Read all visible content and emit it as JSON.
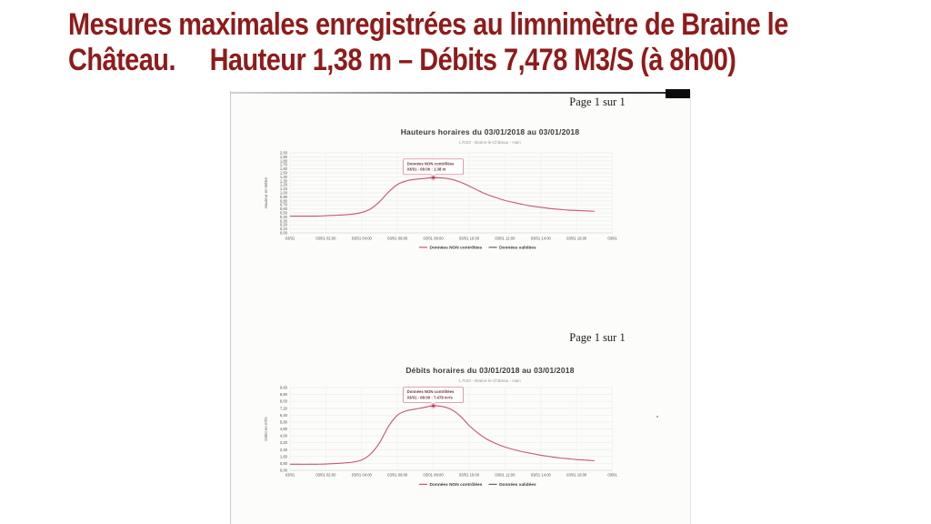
{
  "slide": {
    "title_line1": "Mesures maximales enregistrées au limnimètre de Braine le",
    "title_line2": "Château.     Hauteur 1,38 m – Débits 7,478 M3/S (à 8h00)",
    "title_color": "#8e1b1b"
  },
  "scan": {
    "page_labels": [
      "Page 1 sur 1",
      "Page 1 sur 1"
    ]
  },
  "chart_data": [
    {
      "type": "line",
      "title": "Hauteurs horaires du 03/01/2018 au 03/01/2018",
      "subtitle": "L7020 - Braine-le-Château - Hain",
      "xlabel": "",
      "ylabel": "Hauteur en Mètre",
      "ylim": [
        0,
        2.0
      ],
      "grid": true,
      "legend_position": "bottom",
      "yticks": [
        "2,00",
        "1,90",
        "1,80",
        "1,70",
        "1,60",
        "1,50",
        "1,40",
        "1,30",
        "1,20",
        "1,10",
        "1,00",
        "0,90",
        "0,80",
        "0,70",
        "0,60",
        "0,50",
        "0,40",
        "0,30",
        "0,20",
        "0,10",
        "0,00"
      ],
      "xtick_hours": [
        0,
        2,
        4,
        6,
        8,
        10,
        12,
        14,
        16,
        18
      ],
      "xtick_labels": [
        "03/01",
        "03/01 02:00",
        "03/01 04:00",
        "03/01 06:00",
        "03/01 08:00",
        "03/01 10:00",
        "03/01 12:00",
        "03/01 14:00",
        "03/01 16:00",
        "03/01"
      ],
      "series": [
        {
          "name": "Données NON contrôlées",
          "color": "#c2596e",
          "x": [
            0,
            0.5,
            1,
            1.5,
            2,
            2.5,
            3,
            3.5,
            4,
            4.5,
            5,
            5.5,
            6,
            6.5,
            7,
            7.5,
            8,
            8.5,
            9,
            9.5,
            10,
            10.5,
            11,
            11.5,
            12,
            12.5,
            13,
            13.5,
            14,
            14.5,
            15,
            15.5,
            16,
            16.5,
            17
          ],
          "y": [
            0.42,
            0.42,
            0.42,
            0.42,
            0.43,
            0.44,
            0.45,
            0.47,
            0.51,
            0.6,
            0.78,
            1.02,
            1.21,
            1.3,
            1.34,
            1.36,
            1.38,
            1.37,
            1.34,
            1.27,
            1.17,
            1.06,
            0.96,
            0.88,
            0.81,
            0.76,
            0.71,
            0.67,
            0.64,
            0.61,
            0.59,
            0.57,
            0.56,
            0.55,
            0.54
          ]
        },
        {
          "name": "Données validées",
          "color": "#566b68",
          "x": [],
          "y": []
        }
      ],
      "annotation": {
        "text_line1": "Données NON contrôlées",
        "text_line2": "03/01 - 08:00 : 1.38 m",
        "at_hour": 8,
        "at_value": 1.38
      }
    },
    {
      "type": "line",
      "title": "Débits horaires du 03/01/2018 au 03/01/2018",
      "subtitle": "L7020 - Braine-le-Château - Hain",
      "xlabel": "",
      "ylabel": "Débit en m³/s",
      "ylim": [
        0,
        9.6
      ],
      "grid": true,
      "legend_position": "bottom",
      "yticks": [
        "9,60",
        "8,80",
        "8,00",
        "7,20",
        "6,40",
        "5,60",
        "4,80",
        "4,00",
        "3,20",
        "2,40",
        "1,60",
        "0,80",
        "0,00"
      ],
      "xtick_hours": [
        0,
        2,
        4,
        6,
        8,
        10,
        12,
        14,
        16,
        18
      ],
      "xtick_labels": [
        "03/01",
        "03/01 02:00",
        "03/01 04:00",
        "03/01 06:00",
        "03/01 08:00",
        "03/01 10:00",
        "03/01 12:00",
        "03/01 14:00",
        "03/01 16:00",
        "03/01"
      ],
      "series": [
        {
          "name": "Données NON contrôlées",
          "color": "#c2596e",
          "x": [
            0,
            0.5,
            1,
            1.5,
            2,
            2.5,
            3,
            3.5,
            4,
            4.5,
            5,
            5.5,
            6,
            6.5,
            7,
            7.5,
            8,
            8.5,
            9,
            9.5,
            10,
            10.5,
            11,
            11.5,
            12,
            12.5,
            13,
            13.5,
            14,
            14.5,
            15,
            15.5,
            16,
            16.5,
            17
          ],
          "y": [
            0.7,
            0.7,
            0.7,
            0.71,
            0.73,
            0.78,
            0.85,
            0.95,
            1.2,
            1.9,
            3.2,
            5.1,
            6.4,
            6.9,
            7.1,
            7.3,
            7.478,
            7.4,
            7.05,
            6.3,
            5.2,
            4.3,
            3.6,
            3.1,
            2.7,
            2.4,
            2.15,
            1.95,
            1.75,
            1.6,
            1.45,
            1.35,
            1.25,
            1.18,
            1.12
          ]
        },
        {
          "name": "Données validées",
          "color": "#566b68",
          "x": [],
          "y": []
        }
      ],
      "annotation": {
        "text_line1": "Données NON contrôlées",
        "text_line2": "03/01 - 08:00 : 7.478 m³/s",
        "at_hour": 8,
        "at_value": 7.478
      }
    }
  ]
}
